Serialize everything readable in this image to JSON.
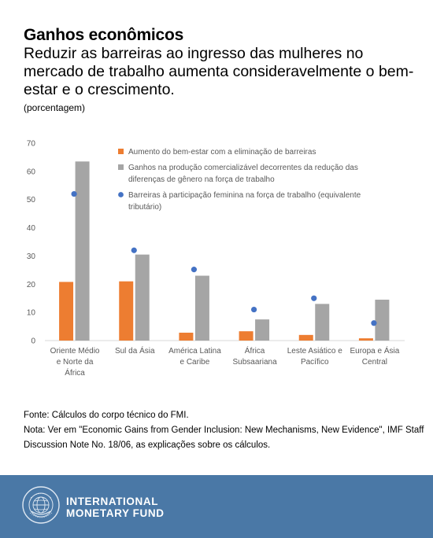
{
  "header": {
    "title": "Ganhos econômicos",
    "subtitle": "Reduzir as barreiras ao ingresso das mulheres no mercado de trabalho aumenta consideravelmente o bem-estar e o crescimento.",
    "unit": "(porcentagem)"
  },
  "chart_data": {
    "type": "bar",
    "categories": [
      [
        "Oriente Médio",
        "e Norte da",
        "África"
      ],
      [
        "Sul da Ásia"
      ],
      [
        "América Latina",
        "e Caribe"
      ],
      [
        "África",
        "Subsaariana"
      ],
      [
        "Leste Asiático e",
        "Pacífico"
      ],
      [
        "Europa e Ásia",
        "Central"
      ]
    ],
    "series": [
      {
        "name": "Aumento do bem-estar com a eliminação de barreiras",
        "kind": "bar",
        "color": "#ed7d31",
        "values": [
          20.8,
          21.0,
          2.8,
          3.3,
          2.0,
          0.8
        ]
      },
      {
        "name": "Ganhos na produção comercializável decorrentes da redução das diferenças de gênero na força de trabalho",
        "kind": "bar",
        "color": "#a5a5a5",
        "values": [
          63.5,
          30.5,
          23.0,
          7.5,
          13.0,
          14.5
        ]
      },
      {
        "name": "Barreiras à participação feminina na força de trabalho (equivalente tributário)",
        "kind": "dot",
        "color": "#4472c4",
        "values": [
          52.0,
          32.0,
          25.2,
          11.0,
          15.0,
          6.2
        ]
      }
    ],
    "legend_lines": [
      [
        "Aumento do bem-estar com a eliminação de barreiras"
      ],
      [
        "Ganhos na produção comercializável decorrentes da redução das",
        "diferenças de gênero na força de trabalho"
      ],
      [
        "Barreiras à participação feminina na força de trabalho (equivalente",
        "tributário)"
      ]
    ],
    "yticks": [
      0,
      10,
      20,
      30,
      40,
      50,
      60,
      70
    ],
    "ylim": [
      0,
      70
    ],
    "grid": false,
    "legend_position": "top-right"
  },
  "notes": {
    "source": "Fonte: Cálculos do corpo técnico do FMI.",
    "note": "Nota: Ver em \"Economic Gains from Gender Inclusion: New Mechanisms, New Evidence\", IMF Staff Discussion Note No. 18/06, as explicações sobre os cálculos."
  },
  "footer": {
    "logo_line1": "INTERNATIONAL",
    "logo_line2": "MONETARY FUND",
    "seal_text": "INTERNATIONAL MONETARY FUND",
    "background": "#4a78a6"
  }
}
